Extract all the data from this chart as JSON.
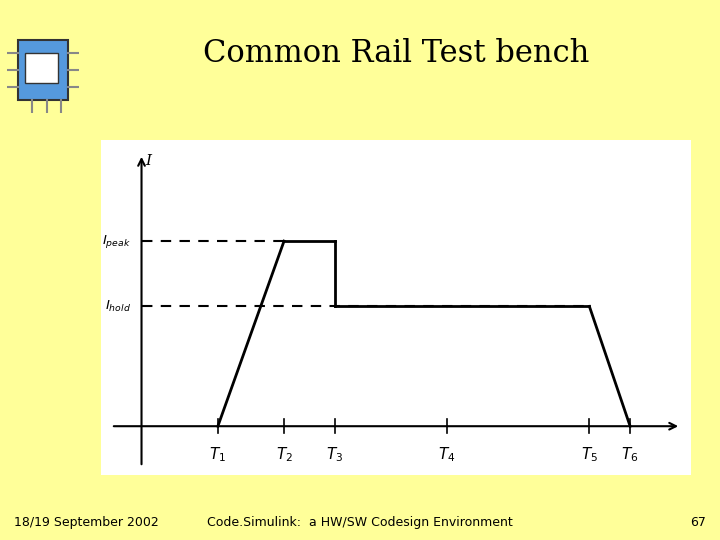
{
  "title": "Common Rail Test bench",
  "background_color": "#FFFF99",
  "plot_bg_color": "#FFFFFF",
  "footer_date": "18/19 September 2002",
  "footer_center": "Code.Simulink:  a HW/SW Codesign Environment",
  "footer_page": "67",
  "title_fontsize": 22,
  "footer_fontsize": 9,
  "I_peak": 0.68,
  "I_hold": 0.44,
  "T1": 1.5,
  "T2": 2.8,
  "T3": 3.8,
  "T4": 6.0,
  "T5": 8.8,
  "T6": 9.6
}
